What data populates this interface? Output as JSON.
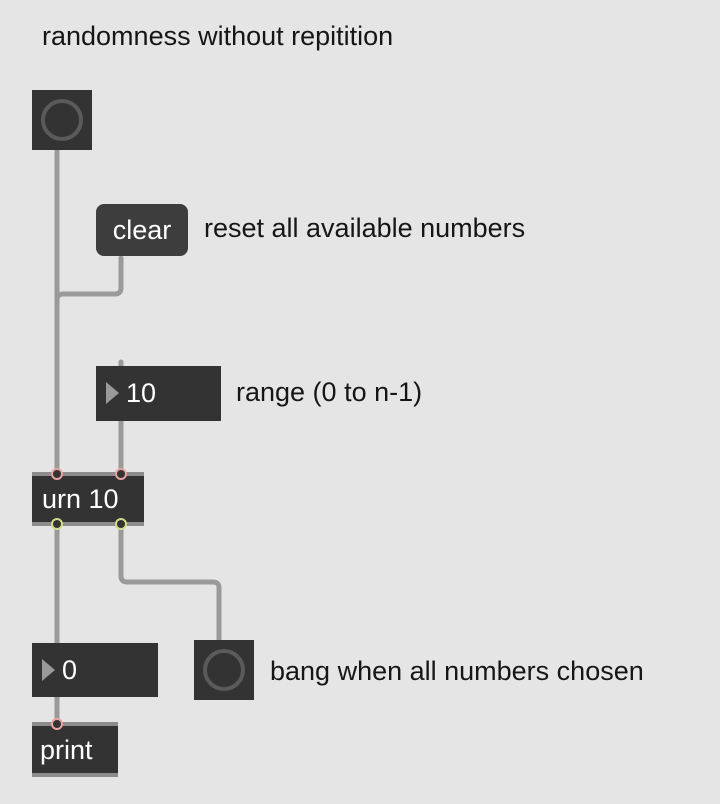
{
  "patch": {
    "title_comment": "randomness without repitition",
    "clear_message": "clear",
    "clear_comment": "reset all available numbers",
    "range_number": "10",
    "range_comment": "range (0 to n-1)",
    "urn_object": "urn 10",
    "output_number": "0",
    "done_comment": "bang when all numbers chosen",
    "print_object": "print"
  }
}
